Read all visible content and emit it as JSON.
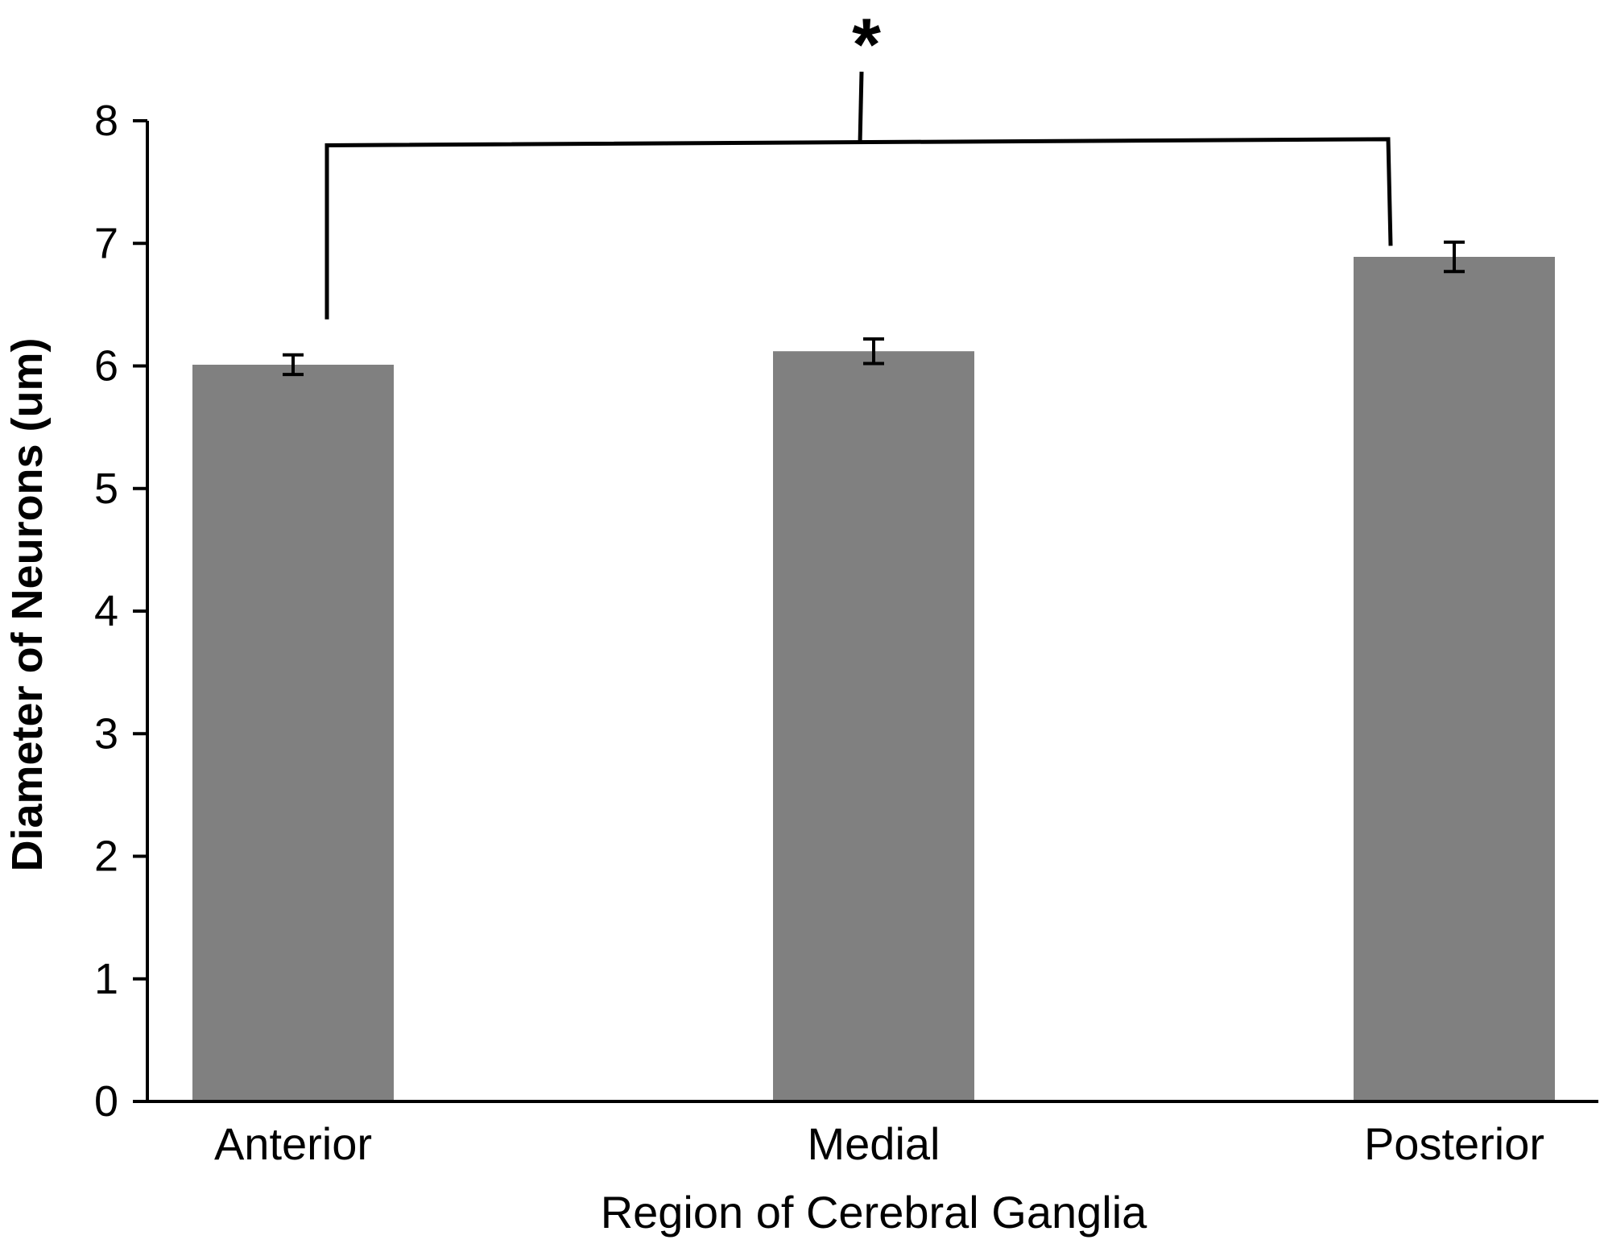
{
  "chart_data": {
    "type": "bar",
    "title": "",
    "xlabel": "Region of Cerebral Ganglia",
    "ylabel": "Diameter of Neurons (um)",
    "categories": [
      "Anterior",
      "Medial",
      "Posterior"
    ],
    "values": [
      6.01,
      6.12,
      6.89
    ],
    "errors": [
      0.08,
      0.1,
      0.12
    ],
    "ylim": [
      0,
      8
    ],
    "yticks": [
      0,
      1,
      2,
      3,
      4,
      5,
      6,
      7,
      8
    ],
    "grid": false,
    "legend": "none",
    "bar_color": "#808080",
    "axis_color": "#000000",
    "annotations": [
      {
        "text": "*",
        "type": "significance-bracket",
        "from": "Anterior",
        "to": "Posterior",
        "left_y": 7.8,
        "right_y": 7.85,
        "left_end_y": 6.38,
        "right_end_y": 6.98,
        "stem_top_y": 8.4
      }
    ]
  }
}
